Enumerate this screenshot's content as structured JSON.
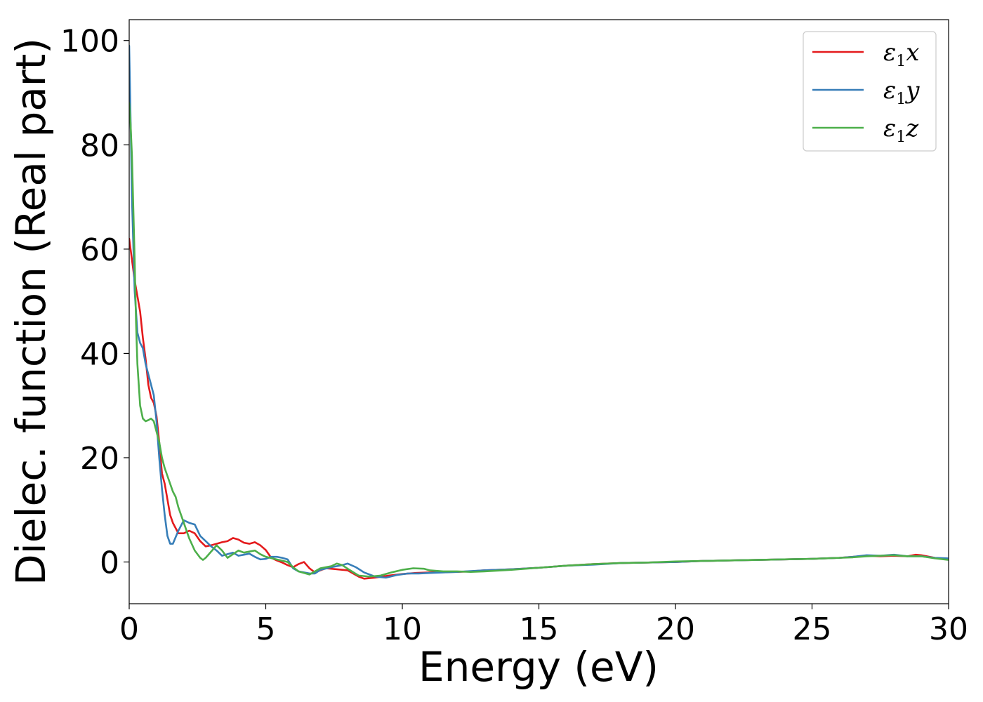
{
  "chart_data": {
    "type": "line",
    "title": "",
    "xlabel": "Energy (eV)",
    "ylabel": "Dielec. function (Real part)",
    "xlim": [
      0,
      30
    ],
    "ylim": [
      -8,
      104
    ],
    "xticks": [
      0,
      5,
      10,
      15,
      20,
      25,
      30
    ],
    "yticks": [
      0,
      20,
      40,
      60,
      80,
      100
    ],
    "grid": false,
    "legend_position": "top-right",
    "series": [
      {
        "name": "ε1x",
        "legend_base": "ε",
        "legend_sub": "1",
        "legend_suffix": "x",
        "color": "#e41a1c",
        "points": [
          [
            0,
            62
          ],
          [
            0.1,
            58
          ],
          [
            0.2,
            54
          ],
          [
            0.3,
            51
          ],
          [
            0.4,
            48
          ],
          [
            0.5,
            43
          ],
          [
            0.6,
            39
          ],
          [
            0.7,
            34
          ],
          [
            0.8,
            31.5
          ],
          [
            0.9,
            30.5
          ],
          [
            1.0,
            28
          ],
          [
            1.1,
            23
          ],
          [
            1.2,
            17
          ],
          [
            1.3,
            15
          ],
          [
            1.4,
            12
          ],
          [
            1.5,
            9
          ],
          [
            1.6,
            7.5
          ],
          [
            1.7,
            6.5
          ],
          [
            1.8,
            5.5
          ],
          [
            2.0,
            5.5
          ],
          [
            2.2,
            6
          ],
          [
            2.4,
            5.5
          ],
          [
            2.6,
            4
          ],
          [
            2.8,
            3
          ],
          [
            3.0,
            3.2
          ],
          [
            3.2,
            3.5
          ],
          [
            3.4,
            3.8
          ],
          [
            3.6,
            4
          ],
          [
            3.8,
            4.6
          ],
          [
            4.0,
            4.3
          ],
          [
            4.2,
            3.7
          ],
          [
            4.4,
            3.5
          ],
          [
            4.6,
            3.8
          ],
          [
            4.8,
            3.2
          ],
          [
            5.0,
            2.3
          ],
          [
            5.2,
            0.8
          ],
          [
            5.4,
            0.3
          ],
          [
            5.6,
            -0.1
          ],
          [
            5.8,
            -0.6
          ],
          [
            6.0,
            -1.0
          ],
          [
            6.2,
            -0.4
          ],
          [
            6.4,
            0
          ],
          [
            6.6,
            -1.2
          ],
          [
            6.8,
            -2
          ],
          [
            7.0,
            -1.6
          ],
          [
            7.2,
            -1.2
          ],
          [
            7.6,
            -1.4
          ],
          [
            8.0,
            -1.6
          ],
          [
            8.4,
            -2.8
          ],
          [
            8.6,
            -3.2
          ],
          [
            9.0,
            -3
          ],
          [
            9.5,
            -2.6
          ],
          [
            10,
            -2.3
          ],
          [
            10.5,
            -2.1
          ],
          [
            11,
            -2
          ],
          [
            12,
            -1.9
          ],
          [
            12.5,
            -1.8
          ],
          [
            13,
            -1.6
          ],
          [
            14,
            -1.4
          ],
          [
            15,
            -1.1
          ],
          [
            16,
            -0.7
          ],
          [
            17,
            -0.4
          ],
          [
            18,
            -0.2
          ],
          [
            19,
            -0.1
          ],
          [
            20,
            0
          ],
          [
            21,
            0.2
          ],
          [
            22,
            0.3
          ],
          [
            23,
            0.4
          ],
          [
            24,
            0.5
          ],
          [
            25,
            0.6
          ],
          [
            26,
            0.8
          ],
          [
            26.5,
            1
          ],
          [
            27,
            1.2
          ],
          [
            27.5,
            1.1
          ],
          [
            28,
            1.2
          ],
          [
            28.5,
            1.1
          ],
          [
            28.8,
            1.4
          ],
          [
            29,
            1.3
          ],
          [
            29.5,
            0.8
          ],
          [
            30,
            0.5
          ]
        ]
      },
      {
        "name": "ε1y",
        "legend_base": "ε",
        "legend_sub": "1",
        "legend_suffix": "y",
        "color": "#377eb8",
        "points": [
          [
            0,
            99
          ],
          [
            0.05,
            85
          ],
          [
            0.1,
            70
          ],
          [
            0.2,
            52
          ],
          [
            0.3,
            44
          ],
          [
            0.4,
            42
          ],
          [
            0.5,
            41
          ],
          [
            0.6,
            38
          ],
          [
            0.7,
            36
          ],
          [
            0.8,
            34
          ],
          [
            0.9,
            32
          ],
          [
            1.0,
            27
          ],
          [
            1.1,
            20
          ],
          [
            1.2,
            14
          ],
          [
            1.3,
            9
          ],
          [
            1.4,
            5
          ],
          [
            1.5,
            3.5
          ],
          [
            1.6,
            3.5
          ],
          [
            1.8,
            6
          ],
          [
            2.0,
            8
          ],
          [
            2.2,
            7.5
          ],
          [
            2.4,
            7.2
          ],
          [
            2.6,
            5
          ],
          [
            2.8,
            4
          ],
          [
            3.0,
            3
          ],
          [
            3.2,
            2.2
          ],
          [
            3.4,
            1.2
          ],
          [
            3.6,
            1.5
          ],
          [
            3.8,
            1.8
          ],
          [
            4.0,
            1.2
          ],
          [
            4.2,
            1.4
          ],
          [
            4.4,
            1.6
          ],
          [
            4.6,
            1
          ],
          [
            4.8,
            0.5
          ],
          [
            5.0,
            0.6
          ],
          [
            5.2,
            1
          ],
          [
            5.4,
            1
          ],
          [
            5.6,
            0.8
          ],
          [
            5.8,
            0.5
          ],
          [
            6.0,
            -1.2
          ],
          [
            6.2,
            -1.8
          ],
          [
            6.4,
            -2
          ],
          [
            6.6,
            -2.2
          ],
          [
            6.8,
            -2.2
          ],
          [
            7.0,
            -1.5
          ],
          [
            7.4,
            -1
          ],
          [
            7.8,
            -0.6
          ],
          [
            8.0,
            -0.3
          ],
          [
            8.3,
            -1
          ],
          [
            8.6,
            -2
          ],
          [
            9.0,
            -2.8
          ],
          [
            9.4,
            -3
          ],
          [
            9.8,
            -2.5
          ],
          [
            10.2,
            -2.2
          ],
          [
            10.6,
            -2.2
          ],
          [
            11,
            -2.1
          ],
          [
            11.5,
            -2.0
          ],
          [
            12,
            -1.9
          ],
          [
            13,
            -1.6
          ],
          [
            14,
            -1.4
          ],
          [
            15,
            -1.1
          ],
          [
            16,
            -0.7
          ],
          [
            17,
            -0.5
          ],
          [
            18,
            -0.2
          ],
          [
            19,
            -0.1
          ],
          [
            20,
            0
          ],
          [
            21,
            0.2
          ],
          [
            22,
            0.3
          ],
          [
            23,
            0.4
          ],
          [
            24,
            0.5
          ],
          [
            25,
            0.6
          ],
          [
            26,
            0.8
          ],
          [
            26.5,
            1
          ],
          [
            27,
            1.3
          ],
          [
            27.5,
            1.2
          ],
          [
            28,
            1.4
          ],
          [
            28.5,
            1.1
          ],
          [
            29,
            1.1
          ],
          [
            29.5,
            0.8
          ],
          [
            30,
            0.7
          ]
        ]
      },
      {
        "name": "ε1z",
        "legend_base": "ε",
        "legend_sub": "1",
        "legend_suffix": "z",
        "color": "#4daf4a",
        "points": [
          [
            0,
            88
          ],
          [
            0.05,
            84
          ],
          [
            0.1,
            78
          ],
          [
            0.15,
            68
          ],
          [
            0.2,
            58
          ],
          [
            0.25,
            46
          ],
          [
            0.3,
            38
          ],
          [
            0.4,
            30
          ],
          [
            0.5,
            27.5
          ],
          [
            0.6,
            27
          ],
          [
            0.7,
            27.2
          ],
          [
            0.8,
            27.5
          ],
          [
            0.9,
            27
          ],
          [
            1.0,
            25
          ],
          [
            1.1,
            23
          ],
          [
            1.2,
            20
          ],
          [
            1.3,
            18
          ],
          [
            1.4,
            16.5
          ],
          [
            1.5,
            15
          ],
          [
            1.6,
            13.5
          ],
          [
            1.7,
            12.5
          ],
          [
            1.8,
            10.5
          ],
          [
            1.9,
            9
          ],
          [
            2.0,
            7.5
          ],
          [
            2.2,
            4.5
          ],
          [
            2.4,
            2.2
          ],
          [
            2.6,
            0.8
          ],
          [
            2.7,
            0.4
          ],
          [
            2.8,
            0.8
          ],
          [
            3.0,
            2
          ],
          [
            3.2,
            3.2
          ],
          [
            3.4,
            2.2
          ],
          [
            3.6,
            0.8
          ],
          [
            3.8,
            1.5
          ],
          [
            4.0,
            2.2
          ],
          [
            4.2,
            1.8
          ],
          [
            4.4,
            2
          ],
          [
            4.6,
            2.2
          ],
          [
            4.8,
            1.5
          ],
          [
            5.0,
            1
          ],
          [
            5.4,
            0.5
          ],
          [
            5.8,
            0
          ],
          [
            6.0,
            -1
          ],
          [
            6.2,
            -1.8
          ],
          [
            6.6,
            -2.4
          ],
          [
            7.0,
            -1.2
          ],
          [
            7.4,
            -0.8
          ],
          [
            7.6,
            -0.3
          ],
          [
            7.8,
            -0.6
          ],
          [
            8.0,
            -1.3
          ],
          [
            8.4,
            -2.6
          ],
          [
            8.8,
            -2.8
          ],
          [
            9.2,
            -2.6
          ],
          [
            9.6,
            -2
          ],
          [
            10,
            -1.5
          ],
          [
            10.4,
            -1.2
          ],
          [
            10.8,
            -1.3
          ],
          [
            11,
            -1.6
          ],
          [
            11.5,
            -1.8
          ],
          [
            12,
            -1.8
          ],
          [
            12.5,
            -1.9
          ],
          [
            13,
            -1.8
          ],
          [
            14,
            -1.5
          ],
          [
            15,
            -1.1
          ],
          [
            16,
            -0.7
          ],
          [
            17,
            -0.4
          ],
          [
            18,
            -0.2
          ],
          [
            19,
            -0.1
          ],
          [
            20,
            0.1
          ],
          [
            21,
            0.2
          ],
          [
            22,
            0.3
          ],
          [
            23,
            0.4
          ],
          [
            24,
            0.5
          ],
          [
            25,
            0.6
          ],
          [
            26,
            0.8
          ],
          [
            26.5,
            0.9
          ],
          [
            27,
            1.1
          ],
          [
            27.5,
            1.2
          ],
          [
            28,
            1.3
          ],
          [
            28.5,
            1.1
          ],
          [
            29,
            1.1
          ],
          [
            29.5,
            0.7
          ],
          [
            30,
            0.4
          ]
        ]
      }
    ]
  }
}
